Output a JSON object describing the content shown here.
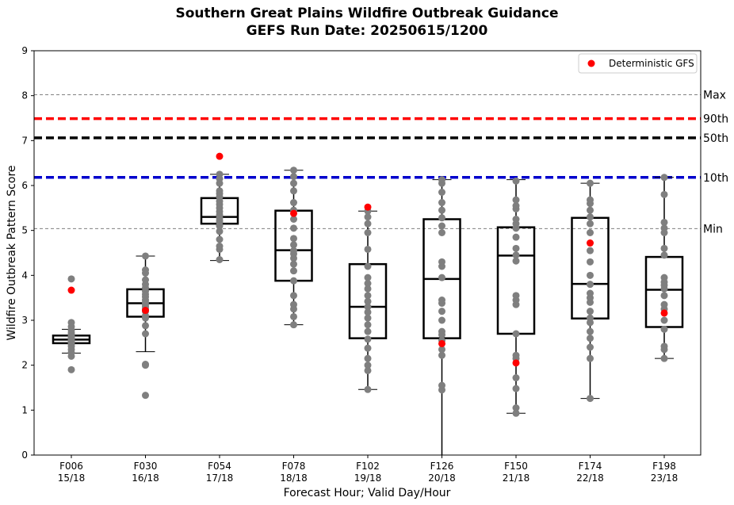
{
  "chart_data": {
    "type": "box",
    "title": "Southern Great Plains Wildfire Outbreak Guidance",
    "subtitle": "GEFS Run Date: 20250615/1200",
    "xlabel": "Forecast Hour; Valid Day/Hour",
    "ylabel": "Wildfire Outbreak Pattern Score",
    "ylim": [
      0,
      9
    ],
    "yticks": [
      "0",
      "1",
      "2",
      "3",
      "4",
      "5",
      "6",
      "7",
      "8",
      "9"
    ],
    "grid": false,
    "legend": {
      "position": "top-right",
      "entries": [
        "Deterministic GFS"
      ]
    },
    "colors": {
      "points": "#7f7f7f",
      "deterministic": "#ff0000",
      "box": "#000000",
      "p90": "#ff0000",
      "p50": "#000000",
      "p10": "#0000cd",
      "minmax": "#808080"
    },
    "reference_lines": [
      {
        "label": "Max",
        "value": 8.02,
        "style": "dashed-thin",
        "color": "#808080"
      },
      {
        "label": "90th",
        "value": 7.49,
        "style": "dashed-thick",
        "color": "#ff0000"
      },
      {
        "label": "50th",
        "value": 7.06,
        "style": "dashed-thick",
        "color": "#000000"
      },
      {
        "label": "10th",
        "value": 6.18,
        "style": "dashed-thick",
        "color": "#0000cd"
      },
      {
        "label": "Min",
        "value": 5.04,
        "style": "dashed-thin",
        "color": "#808080"
      }
    ],
    "categories": [
      {
        "label1": "F006",
        "label2": "15/18",
        "whisker_low": 2.27,
        "q1": 2.49,
        "median": 2.57,
        "q3": 2.66,
        "whisker_high": 2.8,
        "deterministic": 3.67,
        "members": [
          1.9,
          2.2,
          2.28,
          2.35,
          2.42,
          2.47,
          2.5,
          2.52,
          2.55,
          2.57,
          2.6,
          2.62,
          2.65,
          2.68,
          2.72,
          2.78,
          2.86,
          2.95,
          3.92
        ]
      },
      {
        "label1": "F030",
        "label2": "16/18",
        "whisker_low": 2.3,
        "q1": 3.08,
        "median": 3.38,
        "q3": 3.69,
        "whisker_high": 4.43,
        "deterministic": 3.22,
        "members": [
          1.33,
          2.0,
          2.02,
          2.7,
          2.88,
          3.05,
          3.1,
          3.2,
          3.25,
          3.3,
          3.35,
          3.4,
          3.45,
          3.52,
          3.58,
          3.65,
          3.72,
          3.8,
          3.9,
          4.05,
          4.12,
          4.43
        ]
      },
      {
        "label1": "F054",
        "label2": "17/18",
        "whisker_low": 4.33,
        "q1": 5.15,
        "median": 5.3,
        "q3": 5.72,
        "whisker_high": 6.25,
        "deterministic": 6.65,
        "members": [
          4.35,
          4.58,
          4.65,
          4.8,
          4.98,
          5.1,
          5.18,
          5.22,
          5.28,
          5.35,
          5.42,
          5.5,
          5.58,
          5.65,
          5.75,
          5.82,
          5.88,
          6.05,
          6.15,
          6.25
        ]
      },
      {
        "label1": "F078",
        "label2": "18/18",
        "whisker_low": 2.9,
        "q1": 3.88,
        "median": 4.56,
        "q3": 5.44,
        "whisker_high": 6.34,
        "deterministic": 5.38,
        "members": [
          2.9,
          3.08,
          3.25,
          3.35,
          3.55,
          3.88,
          4.1,
          4.25,
          4.38,
          4.48,
          4.55,
          4.68,
          4.82,
          5.05,
          5.25,
          5.45,
          5.62,
          5.88,
          6.05,
          6.2,
          6.34
        ]
      },
      {
        "label1": "F102",
        "label2": "19/18",
        "whisker_low": 1.46,
        "q1": 2.6,
        "median": 3.3,
        "q3": 4.25,
        "whisker_high": 5.43,
        "deterministic": 5.52,
        "members": [
          1.46,
          1.88,
          2.0,
          2.15,
          2.38,
          2.58,
          2.75,
          2.9,
          3.05,
          3.18,
          3.3,
          3.42,
          3.55,
          3.7,
          3.82,
          3.95,
          4.2,
          4.58,
          4.95,
          5.15,
          5.3,
          5.43
        ]
      },
      {
        "label1": "F126",
        "label2": "20/18",
        "whisker_low": 0.0,
        "q1": 2.6,
        "median": 3.92,
        "q3": 5.25,
        "whisker_high": 6.13,
        "deterministic": 2.48,
        "members": [
          1.45,
          1.55,
          2.22,
          2.35,
          2.55,
          2.68,
          2.75,
          3.0,
          3.2,
          3.38,
          3.45,
          3.95,
          4.2,
          4.3,
          4.95,
          5.1,
          5.28,
          5.45,
          5.62,
          5.85,
          6.05,
          6.13
        ]
      },
      {
        "label1": "F150",
        "label2": "21/18",
        "whisker_low": 0.93,
        "q1": 2.7,
        "median": 4.44,
        "q3": 5.07,
        "whisker_high": 6.13,
        "deterministic": 2.05,
        "members": [
          0.93,
          1.05,
          1.48,
          1.72,
          2.15,
          2.22,
          2.7,
          3.35,
          3.45,
          3.55,
          4.32,
          4.45,
          4.6,
          4.85,
          5.05,
          5.15,
          5.25,
          5.48,
          5.55,
          5.68,
          6.1
        ]
      },
      {
        "label1": "F174",
        "label2": "22/18",
        "whisker_low": 1.26,
        "q1": 3.04,
        "median": 3.81,
        "q3": 5.28,
        "whisker_high": 6.05,
        "deterministic": 4.72,
        "members": [
          1.26,
          2.15,
          2.4,
          2.6,
          2.75,
          2.95,
          3.05,
          3.2,
          3.4,
          3.5,
          3.6,
          3.8,
          4.0,
          4.3,
          4.55,
          4.95,
          5.15,
          5.3,
          5.45,
          5.6,
          5.68,
          6.05
        ]
      },
      {
        "label1": "F198",
        "label2": "23/18",
        "whisker_low": 2.15,
        "q1": 2.85,
        "median": 3.68,
        "q3": 4.41,
        "whisker_high": 6.18,
        "deterministic": 3.16,
        "members": [
          2.15,
          2.35,
          2.42,
          2.8,
          3.0,
          3.25,
          3.35,
          3.55,
          3.7,
          3.78,
          3.85,
          3.95,
          4.45,
          4.6,
          4.95,
          5.05,
          5.18,
          5.8,
          6.18
        ]
      }
    ]
  }
}
